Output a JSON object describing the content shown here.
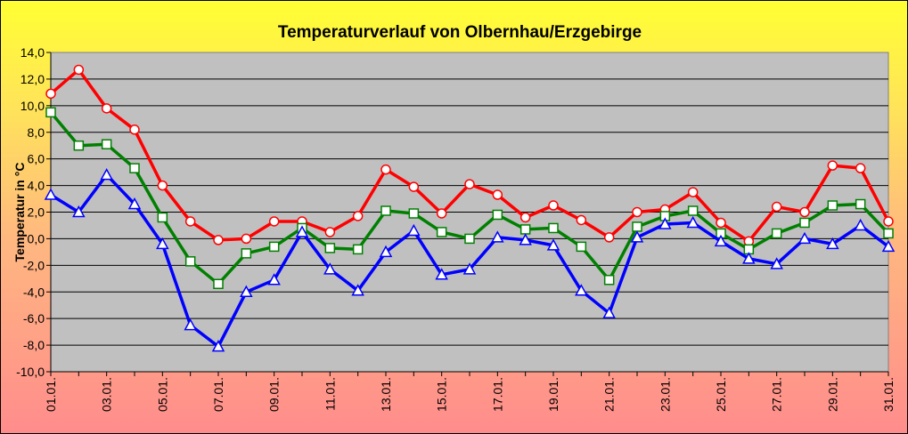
{
  "chart_data": {
    "type": "line",
    "title": "Temperaturverlauf von Olbernhau/Erzgebirge",
    "ylabel": "Temperatur in °C",
    "xlabel": "",
    "ylim": [
      -10,
      14
    ],
    "ytick_step": 2,
    "ytick_labels": [
      "-10,0",
      "-8,0",
      "-6,0",
      "-4,0",
      "-2,0",
      "0,0",
      "2,0",
      "4,0",
      "6,0",
      "8,0",
      "10,0",
      "12,0",
      "14,0"
    ],
    "categories": [
      "01.01.",
      "02.01.",
      "03.01.",
      "04.01.",
      "05.01.",
      "06.01.",
      "07.01.",
      "08.01.",
      "09.01.",
      "10.01.",
      "11.01.",
      "12.01.",
      "13.01.",
      "14.01.",
      "15.01.",
      "16.01.",
      "17.01.",
      "18.01.",
      "19.01.",
      "20.01.",
      "21.01.",
      "22.01.",
      "23.01.",
      "24.01.",
      "25.01.",
      "26.01.",
      "27.01.",
      "28.01.",
      "29.01.",
      "30.01.",
      "31.01."
    ],
    "x_tick_labels": [
      "01.01.",
      "03.01.",
      "05.01.",
      "07.01.",
      "09.01.",
      "11.01.",
      "13.01.",
      "15.01.",
      "17.01.",
      "19.01.",
      "21.01.",
      "23.01.",
      "25.01.",
      "27.01.",
      "29.01.",
      "31.01."
    ],
    "grid": true,
    "plot_background": "#c0c0c0",
    "series": [
      {
        "color": "#ff0000",
        "marker": "circle",
        "values": [
          10.9,
          12.7,
          9.8,
          8.2,
          4.0,
          1.3,
          -0.1,
          0.0,
          1.3,
          1.3,
          0.5,
          1.7,
          5.2,
          3.9,
          1.9,
          4.1,
          3.3,
          1.6,
          2.5,
          1.4,
          0.1,
          2.0,
          2.2,
          3.5,
          1.2,
          -0.2,
          2.4,
          2.0,
          5.5,
          5.3,
          1.3
        ]
      },
      {
        "color": "#008000",
        "marker": "square",
        "values": [
          9.5,
          7.0,
          7.1,
          5.3,
          1.6,
          -1.7,
          -3.4,
          -1.1,
          -0.6,
          0.8,
          -0.7,
          -0.8,
          2.1,
          1.9,
          0.5,
          0.0,
          1.8,
          0.7,
          0.8,
          -0.6,
          -3.1,
          0.9,
          1.7,
          2.1,
          0.4,
          -0.8,
          0.4,
          1.2,
          2.5,
          2.6,
          0.4
        ]
      },
      {
        "color": "#0000ff",
        "marker": "triangle",
        "values": [
          3.3,
          2.0,
          4.8,
          2.6,
          -0.4,
          -6.5,
          -8.1,
          -4.0,
          -3.1,
          0.5,
          -2.3,
          -3.9,
          -1.0,
          0.6,
          -2.7,
          -2.3,
          0.1,
          -0.1,
          -0.5,
          -3.9,
          -5.6,
          0.1,
          1.1,
          1.2,
          -0.2,
          -1.5,
          -1.9,
          0.0,
          -0.4,
          1.0,
          -0.6
        ]
      }
    ]
  }
}
